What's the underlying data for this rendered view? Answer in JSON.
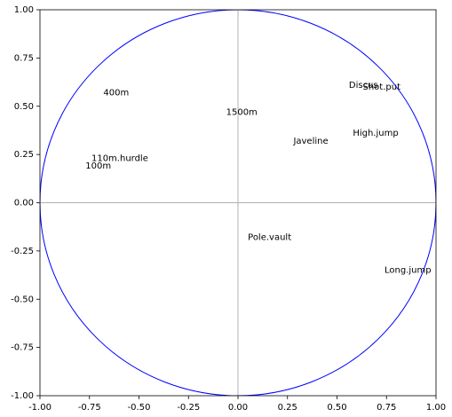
{
  "chart_data": {
    "type": "scatter",
    "title": "",
    "xlabel": "",
    "ylabel": "",
    "xlim": [
      -1.0,
      1.0
    ],
    "ylim": [
      -1.0,
      1.0
    ],
    "grid": false,
    "reference_lines": {
      "x": 0,
      "y": 0,
      "color": "#b0b0b0"
    },
    "circle": {
      "radius": 1.0,
      "color": "#0000ff"
    },
    "x_ticks": [
      "-1.00",
      "-0.75",
      "-0.50",
      "-0.25",
      "0.00",
      "0.25",
      "0.50",
      "0.75",
      "1.00"
    ],
    "y_ticks": [
      "1.00",
      "0.75",
      "0.50",
      "0.25",
      "0.00",
      "-0.25",
      "-0.50",
      "-0.75",
      "-1.00"
    ],
    "points": [
      {
        "label": "400m",
        "x": -0.68,
        "y": 0.57
      },
      {
        "label": "1500m",
        "x": -0.06,
        "y": 0.47
      },
      {
        "label": "Discus",
        "x": 0.56,
        "y": 0.61
      },
      {
        "label": "Shot.put",
        "x": 0.63,
        "y": 0.6
      },
      {
        "label": "High.jump",
        "x": 0.58,
        "y": 0.36
      },
      {
        "label": "Javeline",
        "x": 0.28,
        "y": 0.32
      },
      {
        "label": "110m.hurdle",
        "x": -0.74,
        "y": 0.23
      },
      {
        "label": "100m",
        "x": -0.77,
        "y": 0.19
      },
      {
        "label": "Pole.vault",
        "x": 0.05,
        "y": -0.18
      },
      {
        "label": "Long.jump",
        "x": 0.74,
        "y": -0.35
      }
    ]
  }
}
